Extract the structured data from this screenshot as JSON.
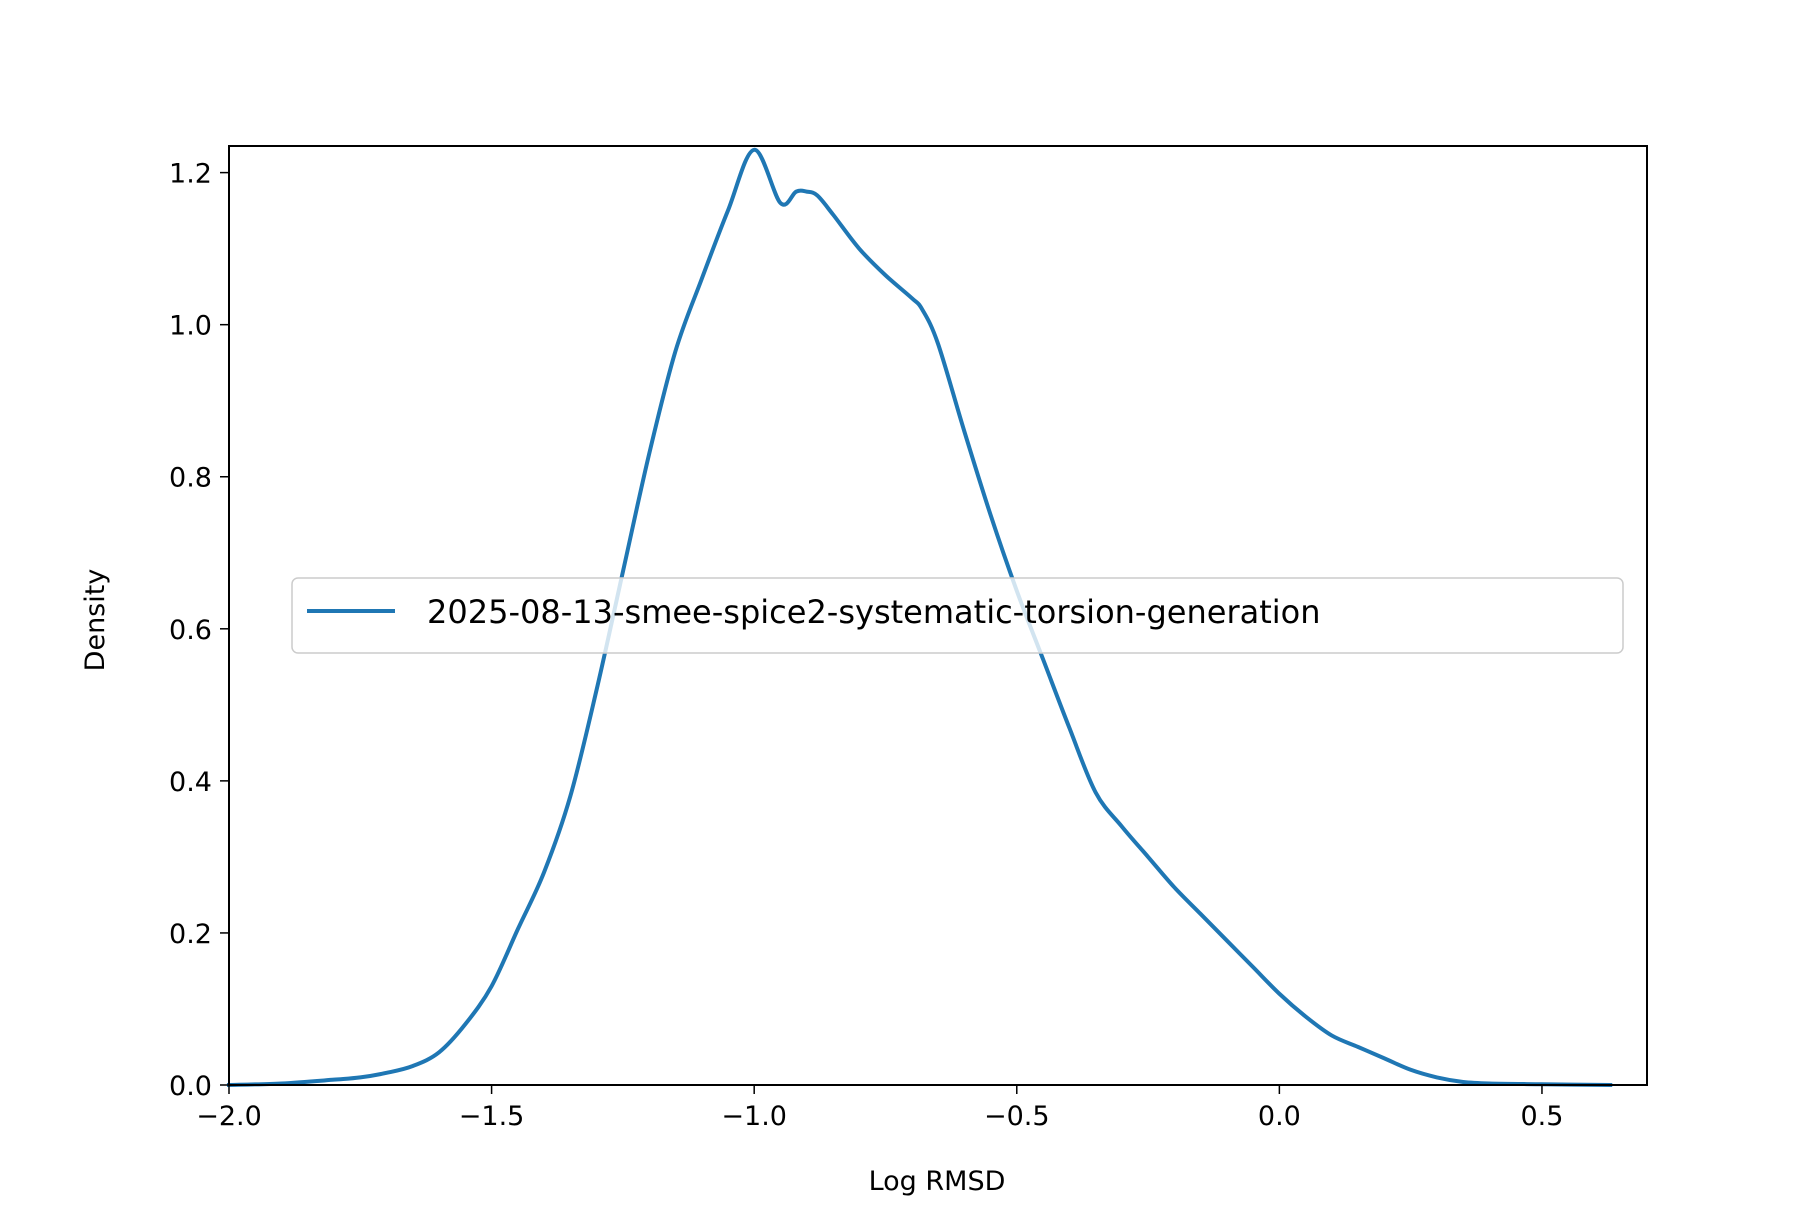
{
  "chart_data": {
    "type": "line",
    "title": "",
    "xlabel": "Log RMSD",
    "ylabel": "Density",
    "xlim": [
      -2.0,
      0.7
    ],
    "ylim": [
      0.0,
      1.235
    ],
    "x_ticks": [
      -2.0,
      -1.5,
      -1.0,
      -0.5,
      0.0,
      0.5
    ],
    "x_tick_labels": [
      "−2.0",
      "−1.5",
      "−1.0",
      "−0.5",
      "0.0",
      "0.5"
    ],
    "y_ticks": [
      0.0,
      0.2,
      0.4,
      0.6,
      0.8,
      1.0,
      1.2
    ],
    "y_tick_labels": [
      "0.0",
      "0.2",
      "0.4",
      "0.6",
      "0.8",
      "1.0",
      "1.2"
    ],
    "grid": false,
    "legend_position": "center-right",
    "series": [
      {
        "name": "2025-08-13-smee-spice2-systematic-torsion-generation",
        "color": "#1f77b4",
        "x": [
          -2.0,
          -1.9,
          -1.8,
          -1.75,
          -1.7,
          -1.65,
          -1.6,
          -1.55,
          -1.5,
          -1.45,
          -1.4,
          -1.35,
          -1.3,
          -1.25,
          -1.2,
          -1.15,
          -1.1,
          -1.05,
          -1.0,
          -0.95,
          -0.92,
          -0.9,
          -0.88,
          -0.85,
          -0.8,
          -0.75,
          -0.7,
          -0.68,
          -0.65,
          -0.6,
          -0.55,
          -0.5,
          -0.45,
          -0.4,
          -0.35,
          -0.3,
          -0.25,
          -0.2,
          -0.15,
          -0.1,
          -0.05,
          0.0,
          0.05,
          0.1,
          0.15,
          0.2,
          0.25,
          0.3,
          0.35,
          0.4,
          0.5,
          0.63
        ],
        "y": [
          0.0,
          0.002,
          0.007,
          0.01,
          0.016,
          0.025,
          0.043,
          0.08,
          0.13,
          0.205,
          0.28,
          0.38,
          0.52,
          0.675,
          0.83,
          0.965,
          1.06,
          1.15,
          1.23,
          1.16,
          1.175,
          1.175,
          1.17,
          1.145,
          1.1,
          1.065,
          1.035,
          1.02,
          0.975,
          0.86,
          0.75,
          0.65,
          0.56,
          0.47,
          0.385,
          0.34,
          0.3,
          0.26,
          0.225,
          0.19,
          0.155,
          0.12,
          0.09,
          0.065,
          0.05,
          0.035,
          0.02,
          0.01,
          0.004,
          0.002,
          0.001,
          0.0
        ]
      }
    ]
  }
}
